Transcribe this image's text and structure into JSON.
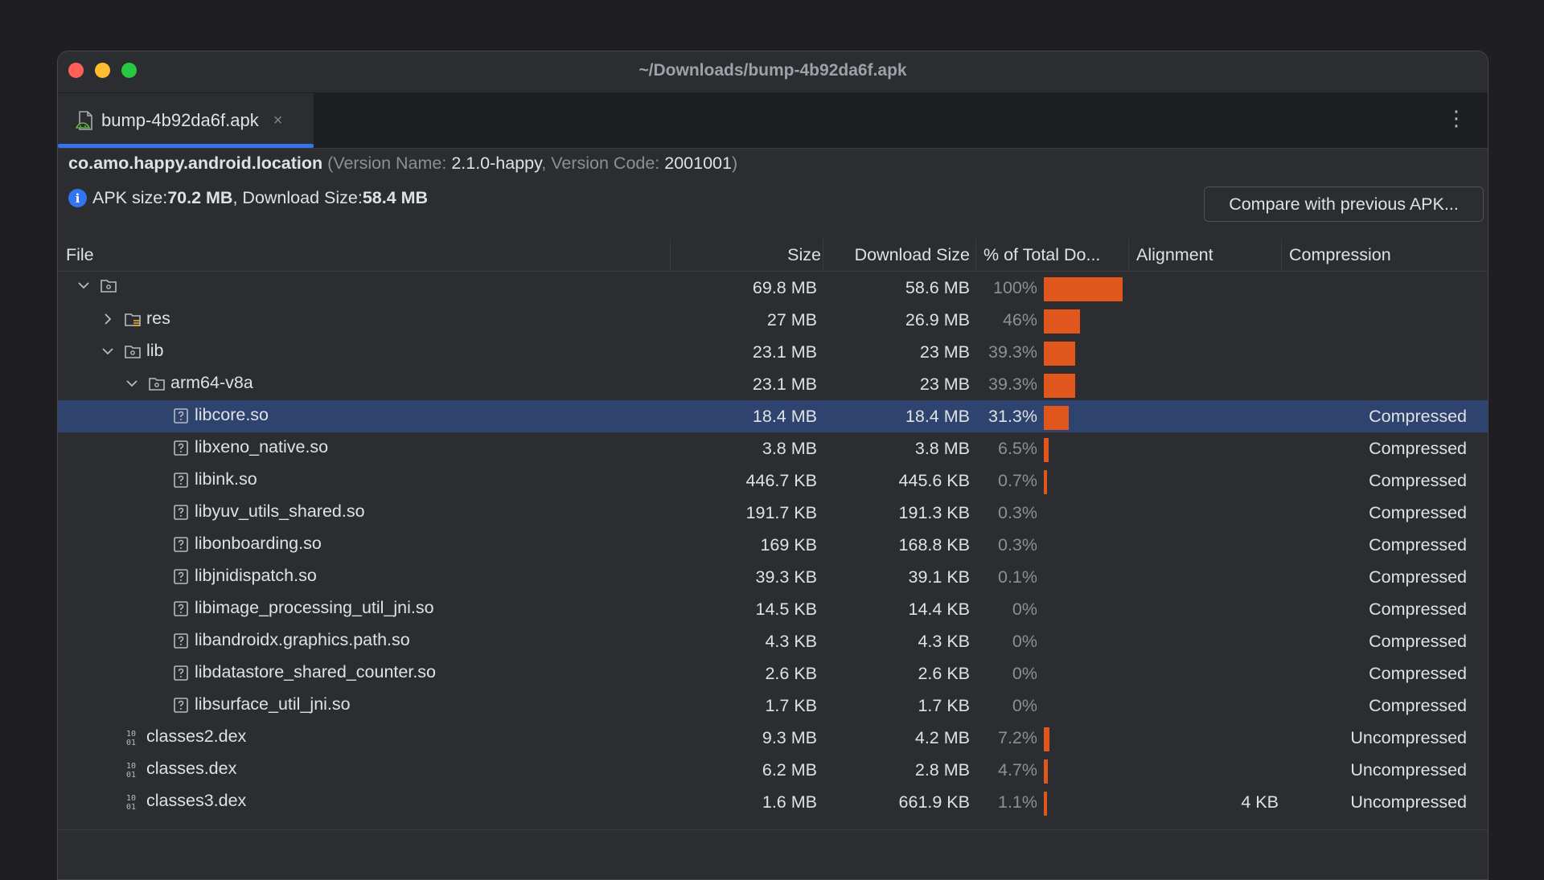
{
  "window": {
    "title": "~/Downloads/bump-4b92da6f.apk"
  },
  "tab": {
    "label": "bump-4b92da6f.apk",
    "close_glyph": "×"
  },
  "more_glyph": "⋮",
  "package": {
    "name": "co.amo.happy.android.location",
    "version_name_label": "(Version Name: ",
    "version_name": "2.1.0-happy",
    "version_code_label": ", Version Code: ",
    "version_code": "2001001",
    "close_paren": ")"
  },
  "sizes": {
    "apk_label": "APK size: ",
    "apk_value": "70.2 MB",
    "download_label": ", Download Size: ",
    "download_value": "58.4 MB"
  },
  "compare_button": "Compare with previous APK...",
  "columns": {
    "file": "File",
    "size": "Size",
    "download_size": "Download Size",
    "percent": "% of Total Do...",
    "alignment": "Alignment",
    "compression": "Compression"
  },
  "rows": [
    {
      "name": "",
      "icon": "folder-icon",
      "expand": "expanded",
      "size": "69.8 MB",
      "download": "58.6 MB",
      "percent": "100%",
      "fraction": 1.0,
      "alignment": "",
      "compression": ""
    },
    {
      "name": "res",
      "icon": "res-folder-icon",
      "expand": "collapsed",
      "size": "27 MB",
      "download": "26.9 MB",
      "percent": "46%",
      "fraction": 0.46,
      "alignment": "",
      "compression": ""
    },
    {
      "name": "lib",
      "icon": "folder-icon",
      "expand": "expanded",
      "size": "23.1 MB",
      "download": "23 MB",
      "percent": "39.3%",
      "fraction": 0.393,
      "alignment": "",
      "compression": ""
    },
    {
      "name": "arm64-v8a",
      "icon": "folder-icon",
      "expand": "expanded",
      "size": "23.1 MB",
      "download": "23 MB",
      "percent": "39.3%",
      "fraction": 0.393,
      "alignment": "",
      "compression": ""
    },
    {
      "name": "libcore.so",
      "icon": "unknown-file-icon",
      "expand": "none",
      "size": "18.4 MB",
      "download": "18.4 MB",
      "percent": "31.3%",
      "fraction": 0.313,
      "alignment": "",
      "compression": "Compressed",
      "selected": true
    },
    {
      "name": "libxeno_native.so",
      "icon": "unknown-file-icon",
      "expand": "none",
      "size": "3.8 MB",
      "download": "3.8 MB",
      "percent": "6.5%",
      "fraction": 0.065,
      "alignment": "",
      "compression": "Compressed"
    },
    {
      "name": "libink.so",
      "icon": "unknown-file-icon",
      "expand": "none",
      "size": "446.7 KB",
      "download": "445.6 KB",
      "percent": "0.7%",
      "fraction": 0.007,
      "alignment": "",
      "compression": "Compressed"
    },
    {
      "name": "libyuv_utils_shared.so",
      "icon": "unknown-file-icon",
      "expand": "none",
      "size": "191.7 KB",
      "download": "191.3 KB",
      "percent": "0.3%",
      "fraction": 0.003,
      "alignment": "",
      "compression": "Compressed"
    },
    {
      "name": "libonboarding.so",
      "icon": "unknown-file-icon",
      "expand": "none",
      "size": "169 KB",
      "download": "168.8 KB",
      "percent": "0.3%",
      "fraction": 0.003,
      "alignment": "",
      "compression": "Compressed"
    },
    {
      "name": "libjnidispatch.so",
      "icon": "unknown-file-icon",
      "expand": "none",
      "size": "39.3 KB",
      "download": "39.1 KB",
      "percent": "0.1%",
      "fraction": 0.001,
      "alignment": "",
      "compression": "Compressed"
    },
    {
      "name": "libimage_processing_util_jni.so",
      "icon": "unknown-file-icon",
      "expand": "none",
      "size": "14.5 KB",
      "download": "14.4 KB",
      "percent": "0%",
      "fraction": 0,
      "alignment": "",
      "compression": "Compressed"
    },
    {
      "name": "libandroidx.graphics.path.so",
      "icon": "unknown-file-icon",
      "expand": "none",
      "size": "4.3 KB",
      "download": "4.3 KB",
      "percent": "0%",
      "fraction": 0,
      "alignment": "",
      "compression": "Compressed"
    },
    {
      "name": "libdatastore_shared_counter.so",
      "icon": "unknown-file-icon",
      "expand": "none",
      "size": "2.6 KB",
      "download": "2.6 KB",
      "percent": "0%",
      "fraction": 0,
      "alignment": "",
      "compression": "Compressed"
    },
    {
      "name": "libsurface_util_jni.so",
      "icon": "unknown-file-icon",
      "expand": "none",
      "size": "1.7 KB",
      "download": "1.7 KB",
      "percent": "0%",
      "fraction": 0,
      "alignment": "",
      "compression": "Compressed"
    },
    {
      "name": "classes2.dex",
      "icon": "dex-file-icon",
      "expand": "none",
      "size": "9.3 MB",
      "download": "4.2 MB",
      "percent": "7.2%",
      "fraction": 0.072,
      "alignment": "",
      "compression": "Uncompressed"
    },
    {
      "name": "classes.dex",
      "icon": "dex-file-icon",
      "expand": "none",
      "size": "6.2 MB",
      "download": "2.8 MB",
      "percent": "4.7%",
      "fraction": 0.047,
      "alignment": "",
      "compression": "Uncompressed"
    },
    {
      "name": "classes3.dex",
      "icon": "dex-file-icon",
      "expand": "none",
      "size": "1.6 MB",
      "download": "661.9 KB",
      "percent": "1.1%",
      "fraction": 0.011,
      "alignment": "4 KB",
      "compression": "Uncompressed"
    }
  ],
  "colors": {
    "bar": "#e0561c",
    "selection": "#2e436e",
    "accent": "#3574f0"
  }
}
